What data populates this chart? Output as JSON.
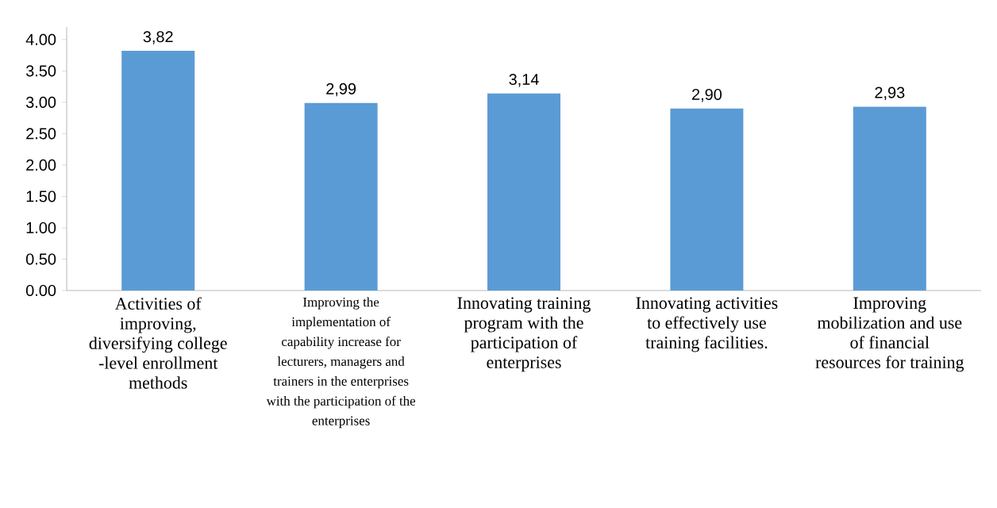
{
  "chart_data": {
    "type": "bar",
    "categories": [
      "Activities of improving, diversifying college -level enrollment methods",
      "Improving the implementation of capability increase for lecturers, managers and trainers in the enterprises with the participation of the enterprises",
      "Innovating training program with the participation of enterprises",
      "Innovating activities to effectively use training facilities.",
      "Improving mobilization and use of financial resources for training"
    ],
    "values": [
      3.82,
      2.99,
      3.14,
      2.9,
      2.93
    ],
    "value_labels": [
      "3,82",
      "2,99",
      "3,14",
      "2,90",
      "2,93"
    ],
    "color": "#5b9bd5",
    "ylim": [
      0,
      4.2
    ],
    "yticks": [
      {
        "value": 0,
        "label": "0.00"
      },
      {
        "value": 0.5,
        "label": "0.50"
      },
      {
        "value": 1,
        "label": "1.00"
      },
      {
        "value": 1.5,
        "label": "1.50"
      },
      {
        "value": 2,
        "label": "2.00"
      },
      {
        "value": 2.5,
        "label": "2.50"
      },
      {
        "value": 3,
        "label": "3.00"
      },
      {
        "value": 3.5,
        "label": "3.50"
      },
      {
        "value": 4,
        "label": "4.00"
      }
    ],
    "grid": false
  }
}
